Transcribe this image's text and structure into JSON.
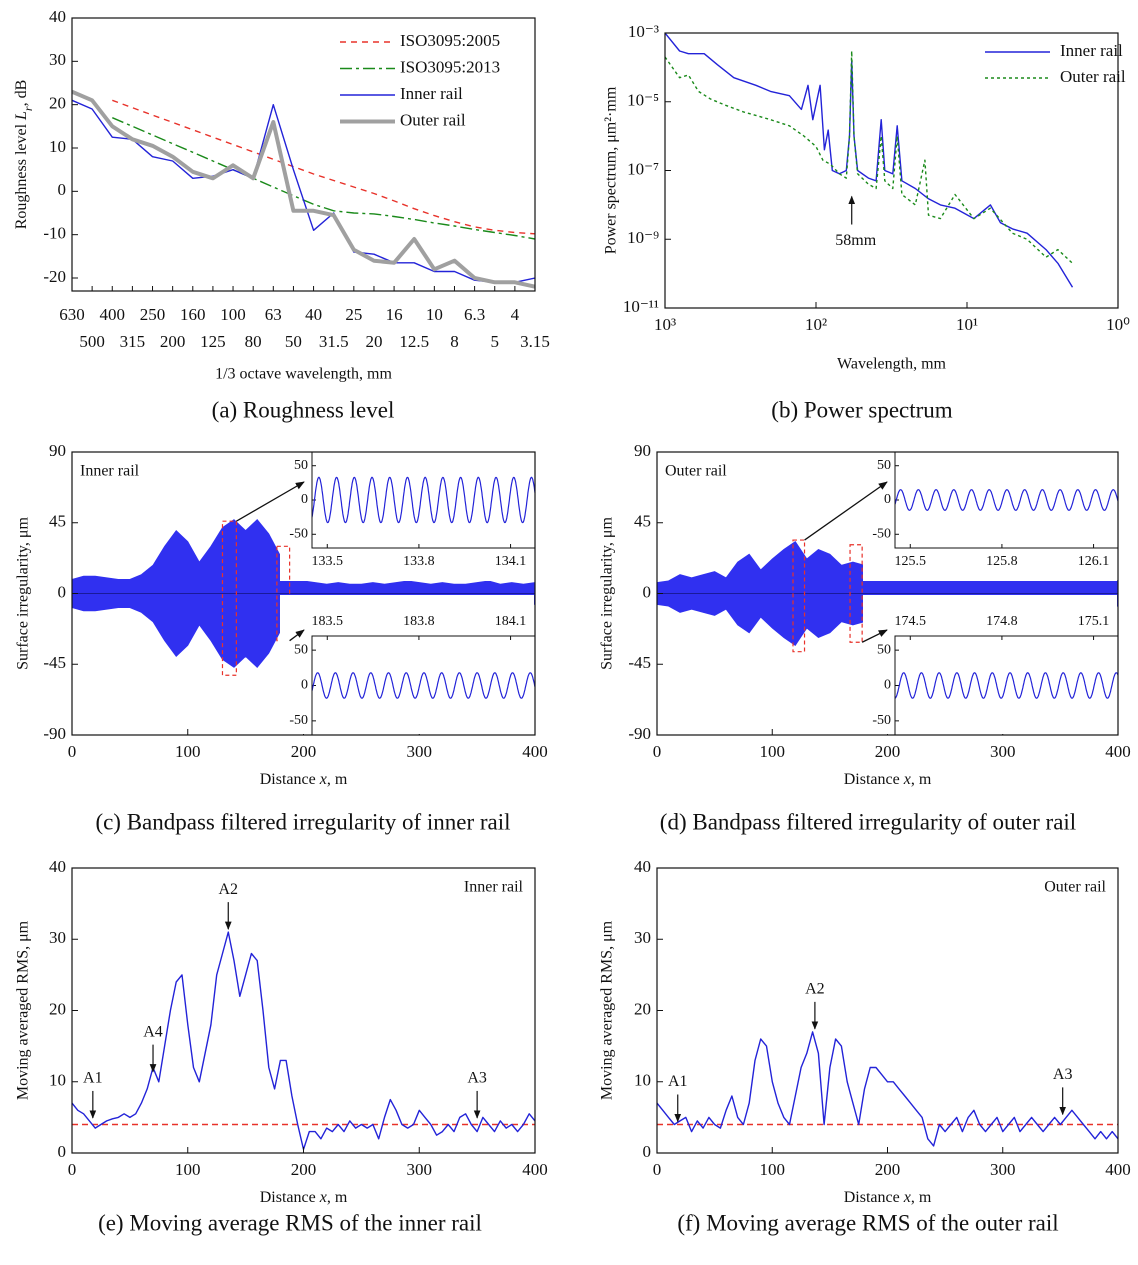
{
  "chart_data": [
    {
      "type": "line",
      "caption": "(a) Roughness level",
      "xlabel": "1/3 octave wavelength, mm",
      "ylabel": [
        "Roughness level ",
        "L",
        "r",
        ", dB"
      ],
      "categories": [
        "630",
        "500",
        "400",
        "315",
        "250",
        "200",
        "160",
        "125",
        "100",
        "80",
        "63",
        "50",
        "40",
        "31.5",
        "25",
        "20",
        "16",
        "12.5",
        "10",
        "8",
        "6.3",
        "5",
        "4",
        "3.15"
      ],
      "ylim": [
        -23,
        40
      ],
      "yticks": [
        -20,
        -10,
        0,
        10,
        20,
        30,
        40
      ],
      "legend": "upper right",
      "series": [
        {
          "name": "ISO3095:2005",
          "color": "#e8322a",
          "dash": "dashed",
          "values": [
            null,
            null,
            21,
            19.3,
            17.6,
            15.9,
            14.2,
            12.5,
            10.8,
            9.1,
            7.4,
            5.7,
            4,
            2.5,
            1,
            -0.5,
            -2.2,
            -4,
            -5.6,
            -7,
            -8.2,
            -9,
            -9.5,
            -9.8
          ]
        },
        {
          "name": "ISO3095:2013",
          "color": "#1a8a1a",
          "dash": "dashdot",
          "values": [
            null,
            null,
            17,
            15,
            13,
            11,
            9,
            7,
            5,
            3,
            1,
            -1,
            -3,
            -4.5,
            -5,
            -5.2,
            -5.8,
            -6.5,
            -7.3,
            -8,
            -8.8,
            -9.5,
            -10.2,
            -11
          ]
        },
        {
          "name": "Inner rail",
          "color": "#2323d8",
          "dash": "solid",
          "values": [
            21,
            19,
            12.5,
            12,
            8,
            7,
            3,
            3.5,
            5,
            3,
            20,
            5,
            -9,
            -5,
            -14,
            -14.5,
            -16.5,
            -16.5,
            -18.5,
            -18.5,
            -20.5,
            -21,
            -21,
            -20
          ]
        },
        {
          "name": "Outer rail",
          "color": "#a0a0a0",
          "dash": "solid",
          "values": [
            23,
            21,
            15,
            12,
            10.5,
            8,
            4.5,
            3,
            6,
            3,
            16,
            -4.5,
            -4.5,
            -5.5,
            -13.5,
            -16,
            -16.5,
            -11,
            -18,
            -16,
            -20,
            -21,
            -21,
            -22
          ]
        }
      ]
    },
    {
      "type": "line",
      "caption": "(b) Power spectrum",
      "xlabel": "Wavelength, mm",
      "ylabel": "Power spectrum, μm²·mm",
      "xlog": true,
      "ylog": true,
      "xlim": [
        1000,
        1
      ],
      "ylim": [
        1e-11,
        0.001
      ],
      "xticks": [
        {
          "value": 1000,
          "label": "10³"
        },
        {
          "value": 100,
          "label": "10²"
        },
        {
          "value": 10,
          "label": "10¹"
        },
        {
          "value": 1,
          "label": "10⁰"
        }
      ],
      "yticks": [
        {
          "value": 1e-11,
          "label": "10⁻¹¹"
        },
        {
          "value": 1e-09,
          "label": "10⁻⁹"
        },
        {
          "value": 1e-07,
          "label": "10⁻⁷"
        },
        {
          "value": 1e-05,
          "label": "10⁻⁵"
        },
        {
          "value": 0.001,
          "label": "10⁻³"
        }
      ],
      "legend": "upper right",
      "annotations": [
        {
          "text": "58mm",
          "x": 58,
          "y": 2e-08
        }
      ],
      "series": [
        {
          "name": "Inner rail",
          "color": "#2323d8",
          "dash": "solid",
          "x": [
            1000,
            800,
            700,
            550,
            450,
            350,
            250,
            200,
            150,
            125,
            113,
            105,
            94,
            88,
            83,
            78,
            70,
            63,
            60,
            58,
            56,
            53,
            45,
            40,
            37,
            35,
            31,
            29,
            27,
            22,
            18,
            15,
            12,
            9,
            7,
            6,
            5,
            4,
            3,
            2.5,
            2
          ],
          "values": [
            0.001,
            0.0003,
            0.00025,
            0.00025,
            0.00012,
            5e-05,
            3e-05,
            2e-05,
            1.5e-05,
            6e-06,
            3e-05,
            3e-06,
            3e-05,
            4e-07,
            1.5e-06,
            1e-07,
            8e-08,
            1e-07,
            1e-06,
            0.00015,
            1e-06,
            1e-07,
            6e-08,
            5e-08,
            3e-06,
            1e-07,
            8e-08,
            2e-06,
            5e-08,
            3e-08,
            1.5e-08,
            1e-08,
            8e-09,
            4e-09,
            1e-08,
            3e-09,
            2e-09,
            1.5e-09,
            5e-10,
            2e-10,
            4e-11
          ]
        },
        {
          "name": "Outer rail",
          "color": "#1a8a1a",
          "dash": "dotted",
          "x": [
            1000,
            800,
            700,
            600,
            500,
            400,
            300,
            250,
            200,
            150,
            120,
            100,
            90,
            80,
            70,
            63,
            60,
            58,
            56,
            53,
            45,
            40,
            37,
            35,
            31,
            29,
            27,
            22,
            19,
            18,
            15,
            12,
            9,
            7,
            5,
            4,
            3,
            2.5,
            2
          ],
          "values": [
            0.0002,
            5e-05,
            6e-05,
            2e-05,
            1.2e-05,
            8e-06,
            5e-06,
            4e-06,
            3e-06,
            2e-06,
            1e-06,
            5e-07,
            2e-07,
            1.5e-07,
            8e-08,
            6e-08,
            1e-06,
            0.0003,
            1e-06,
            8e-08,
            4e-08,
            3e-08,
            1e-06,
            5e-08,
            3e-08,
            1e-06,
            2e-08,
            1e-08,
            2e-07,
            5e-09,
            4e-09,
            2e-08,
            4e-09,
            8e-09,
            1.5e-09,
            1e-09,
            3e-10,
            5e-10,
            2e-10
          ]
        }
      ]
    },
    {
      "type": "envelope",
      "caption": "(c) Bandpass filtered irregularity of inner rail",
      "xlabel": [
        "Distance ",
        "x",
        ", m"
      ],
      "ylabel": "Surface irregularity, μm",
      "label": "Inner rail",
      "label_corner": "upper left",
      "color": "#3030f0",
      "xlim": [
        0,
        400
      ],
      "xticks": [
        0,
        100,
        200,
        300,
        400
      ],
      "ylim": [
        -90,
        90
      ],
      "yticks": [
        -90,
        -45,
        0,
        45,
        90
      ],
      "x": [
        0,
        10,
        20,
        30,
        40,
        50,
        60,
        70,
        80,
        90,
        100,
        110,
        120,
        130,
        140,
        150,
        160,
        170,
        180,
        190,
        200,
        210,
        220,
        230,
        240,
        250,
        260,
        270,
        280,
        290,
        300,
        310,
        320,
        330,
        340,
        350,
        360,
        370,
        380,
        390,
        400
      ],
      "amplitude": [
        9,
        11,
        11,
        10,
        9,
        9,
        12,
        18,
        30,
        40,
        33,
        20,
        30,
        42,
        47,
        40,
        47,
        38,
        24,
        12,
        8,
        7,
        6,
        7,
        6,
        6,
        7,
        6,
        7,
        8,
        7,
        6,
        7,
        6,
        6,
        7,
        8,
        6,
        7,
        6,
        7
      ],
      "insets": [
        {
          "position": "top",
          "xlim": [
            133.45,
            134.18
          ],
          "xticks": [
            133.5,
            133.8,
            134.1
          ],
          "ylim": [
            -70,
            70
          ],
          "yticks": [
            -50,
            0,
            50
          ],
          "amplitude": 33,
          "wavelength": 0.058,
          "box": {
            "xlim": [
              130,
              142
            ],
            "ylim": [
              -52,
              46
            ]
          }
        },
        {
          "position": "bottom",
          "xlim": [
            183.45,
            184.18
          ],
          "xticks": [
            183.5,
            183.8,
            184.1
          ],
          "ylim": [
            -70,
            70
          ],
          "yticks": [
            -50,
            0,
            50
          ],
          "amplitude": 18,
          "wavelength": 0.058,
          "box": {
            "xlim": [
              177,
              188
            ],
            "ylim": [
              -30,
              30
            ]
          }
        }
      ]
    },
    {
      "type": "envelope",
      "caption": "(d) Bandpass filtered irregularity of outer rail",
      "xlabel": [
        "Distance ",
        "x",
        ", m"
      ],
      "ylabel": "Surface irregularity, μm",
      "label": "Outer rail",
      "label_corner": "upper left",
      "color": "#3030f0",
      "xlim": [
        0,
        400
      ],
      "xticks": [
        0,
        100,
        200,
        300,
        400
      ],
      "ylim": [
        -90,
        90
      ],
      "yticks": [
        -90,
        -45,
        0,
        45,
        90
      ],
      "x": [
        0,
        10,
        20,
        30,
        40,
        50,
        60,
        70,
        80,
        90,
        100,
        110,
        120,
        130,
        140,
        150,
        160,
        170,
        180,
        190,
        200,
        210,
        220,
        230,
        240,
        250,
        260,
        270,
        280,
        290,
        300,
        310,
        320,
        330,
        340,
        350,
        360,
        370,
        380,
        390,
        400
      ],
      "amplitude": [
        7,
        8,
        12,
        10,
        12,
        14,
        10,
        20,
        25,
        15,
        22,
        28,
        33,
        22,
        28,
        25,
        18,
        20,
        18,
        15,
        13,
        12,
        10,
        14,
        12,
        10,
        9,
        11,
        8,
        10,
        9,
        12,
        10,
        8,
        9,
        10,
        8,
        9,
        10,
        9,
        8
      ],
      "insets": [
        {
          "position": "top",
          "xlim": [
            125.45,
            126.18
          ],
          "xticks": [
            125.5,
            125.8,
            126.1
          ],
          "ylim": [
            -70,
            70
          ],
          "yticks": [
            -50,
            0,
            50
          ],
          "amplitude": 15,
          "wavelength": 0.058,
          "box": {
            "xlim": [
              118,
              128
            ],
            "ylim": [
              -37,
              34
            ]
          }
        },
        {
          "position": "bottom",
          "xlim": [
            174.45,
            175.18
          ],
          "xticks": [
            174.5,
            174.8,
            175.1
          ],
          "ylim": [
            -70,
            70
          ],
          "yticks": [
            -50,
            0,
            50
          ],
          "amplitude": 18,
          "wavelength": 0.058,
          "box": {
            "xlim": [
              167.5,
              178
            ],
            "ylim": [
              -31,
              31
            ]
          }
        }
      ]
    },
    {
      "type": "line",
      "caption": "(e) Moving average RMS of the inner rail",
      "xlabel": [
        "Distance ",
        "x",
        ", m"
      ],
      "ylabel": "Moving averaged RMS, μm",
      "label": "Inner rail",
      "label_corner": "upper right",
      "color": "#2323d8",
      "hline": 4,
      "hline_color": "#e8322a",
      "xlim": [
        0,
        400
      ],
      "xticks": [
        0,
        100,
        200,
        300,
        400
      ],
      "ylim": [
        0,
        40
      ],
      "yticks": [
        0,
        10,
        20,
        30,
        40
      ],
      "annotations": [
        {
          "text": "A1",
          "x": 18,
          "y": 4.5
        },
        {
          "text": "A2",
          "x": 135,
          "y": 31
        },
        {
          "text": "A3",
          "x": 350,
          "y": 4.5
        },
        {
          "text": "A4",
          "x": 70,
          "y": 11
        }
      ],
      "x": [
        0,
        5,
        10,
        15,
        20,
        25,
        30,
        35,
        40,
        45,
        50,
        55,
        60,
        65,
        70,
        75,
        80,
        85,
        90,
        95,
        100,
        105,
        110,
        115,
        120,
        125,
        130,
        135,
        140,
        145,
        150,
        155,
        160,
        165,
        170,
        175,
        180,
        185,
        190,
        195,
        200,
        205,
        210,
        215,
        220,
        225,
        230,
        235,
        240,
        245,
        250,
        255,
        260,
        265,
        270,
        275,
        280,
        285,
        290,
        295,
        300,
        305,
        310,
        315,
        320,
        325,
        330,
        335,
        340,
        345,
        350,
        355,
        360,
        365,
        370,
        375,
        380,
        385,
        390,
        395,
        400
      ],
      "values": [
        7,
        6,
        5.5,
        4.5,
        3.5,
        4,
        4.5,
        4.8,
        5,
        5.5,
        5,
        5.5,
        7,
        9,
        12,
        10,
        15,
        20,
        24,
        25,
        18,
        12,
        10,
        14,
        18,
        25,
        28,
        31,
        27,
        22,
        25,
        28,
        27,
        20,
        12,
        9,
        13,
        13,
        8,
        4,
        0.5,
        3,
        3,
        2,
        3.5,
        3,
        4,
        3,
        4.5,
        3.5,
        4,
        3.5,
        4,
        2,
        5,
        7.5,
        6,
        4,
        3.5,
        4,
        6,
        5,
        4,
        2.5,
        3,
        4,
        3,
        5,
        5.5,
        4,
        3,
        5,
        4,
        3,
        4.5,
        3.5,
        4,
        3,
        4,
        5.5,
        4.5
      ]
    },
    {
      "type": "line",
      "caption": "(f) Moving average RMS of the outer rail",
      "xlabel": [
        "Distance ",
        "x",
        ", m"
      ],
      "ylabel": "Moving averaged RMS, μm",
      "label": "Outer rail",
      "label_corner": "upper right",
      "color": "#2323d8",
      "hline": 4,
      "hline_color": "#e8322a",
      "xlim": [
        0,
        400
      ],
      "xticks": [
        0,
        100,
        200,
        300,
        400
      ],
      "ylim": [
        0,
        40
      ],
      "yticks": [
        0,
        10,
        20,
        30,
        40
      ],
      "annotations": [
        {
          "text": "A1",
          "x": 18,
          "y": 4
        },
        {
          "text": "A2",
          "x": 137,
          "y": 17
        },
        {
          "text": "A3",
          "x": 352,
          "y": 5
        }
      ],
      "x": [
        0,
        5,
        10,
        15,
        20,
        25,
        30,
        35,
        40,
        45,
        50,
        55,
        60,
        65,
        70,
        75,
        80,
        85,
        90,
        95,
        100,
        105,
        110,
        115,
        120,
        125,
        130,
        135,
        140,
        145,
        150,
        155,
        160,
        165,
        170,
        175,
        180,
        185,
        190,
        195,
        200,
        205,
        210,
        215,
        220,
        225,
        230,
        235,
        240,
        245,
        250,
        255,
        260,
        265,
        270,
        275,
        280,
        285,
        290,
        295,
        300,
        305,
        310,
        315,
        320,
        325,
        330,
        335,
        340,
        345,
        350,
        355,
        360,
        365,
        370,
        375,
        380,
        385,
        390,
        395,
        400
      ],
      "values": [
        7,
        6,
        5,
        4,
        4.5,
        5,
        3,
        4.5,
        3.5,
        5,
        4,
        3.5,
        6,
        8,
        5,
        4,
        7,
        13,
        16,
        15,
        10,
        7,
        5,
        4,
        8,
        12,
        14,
        17,
        14,
        4,
        12,
        16,
        15,
        10,
        7,
        4,
        9,
        12,
        12,
        11,
        10,
        10,
        9,
        8,
        7,
        6,
        5,
        2,
        1,
        4,
        3,
        4,
        5,
        3,
        5,
        6,
        4,
        3,
        4,
        5,
        3,
        4,
        5,
        3,
        4,
        5,
        4,
        3,
        4,
        5,
        4,
        5,
        6,
        5,
        4,
        3,
        2,
        3,
        2,
        3,
        2
      ]
    }
  ]
}
